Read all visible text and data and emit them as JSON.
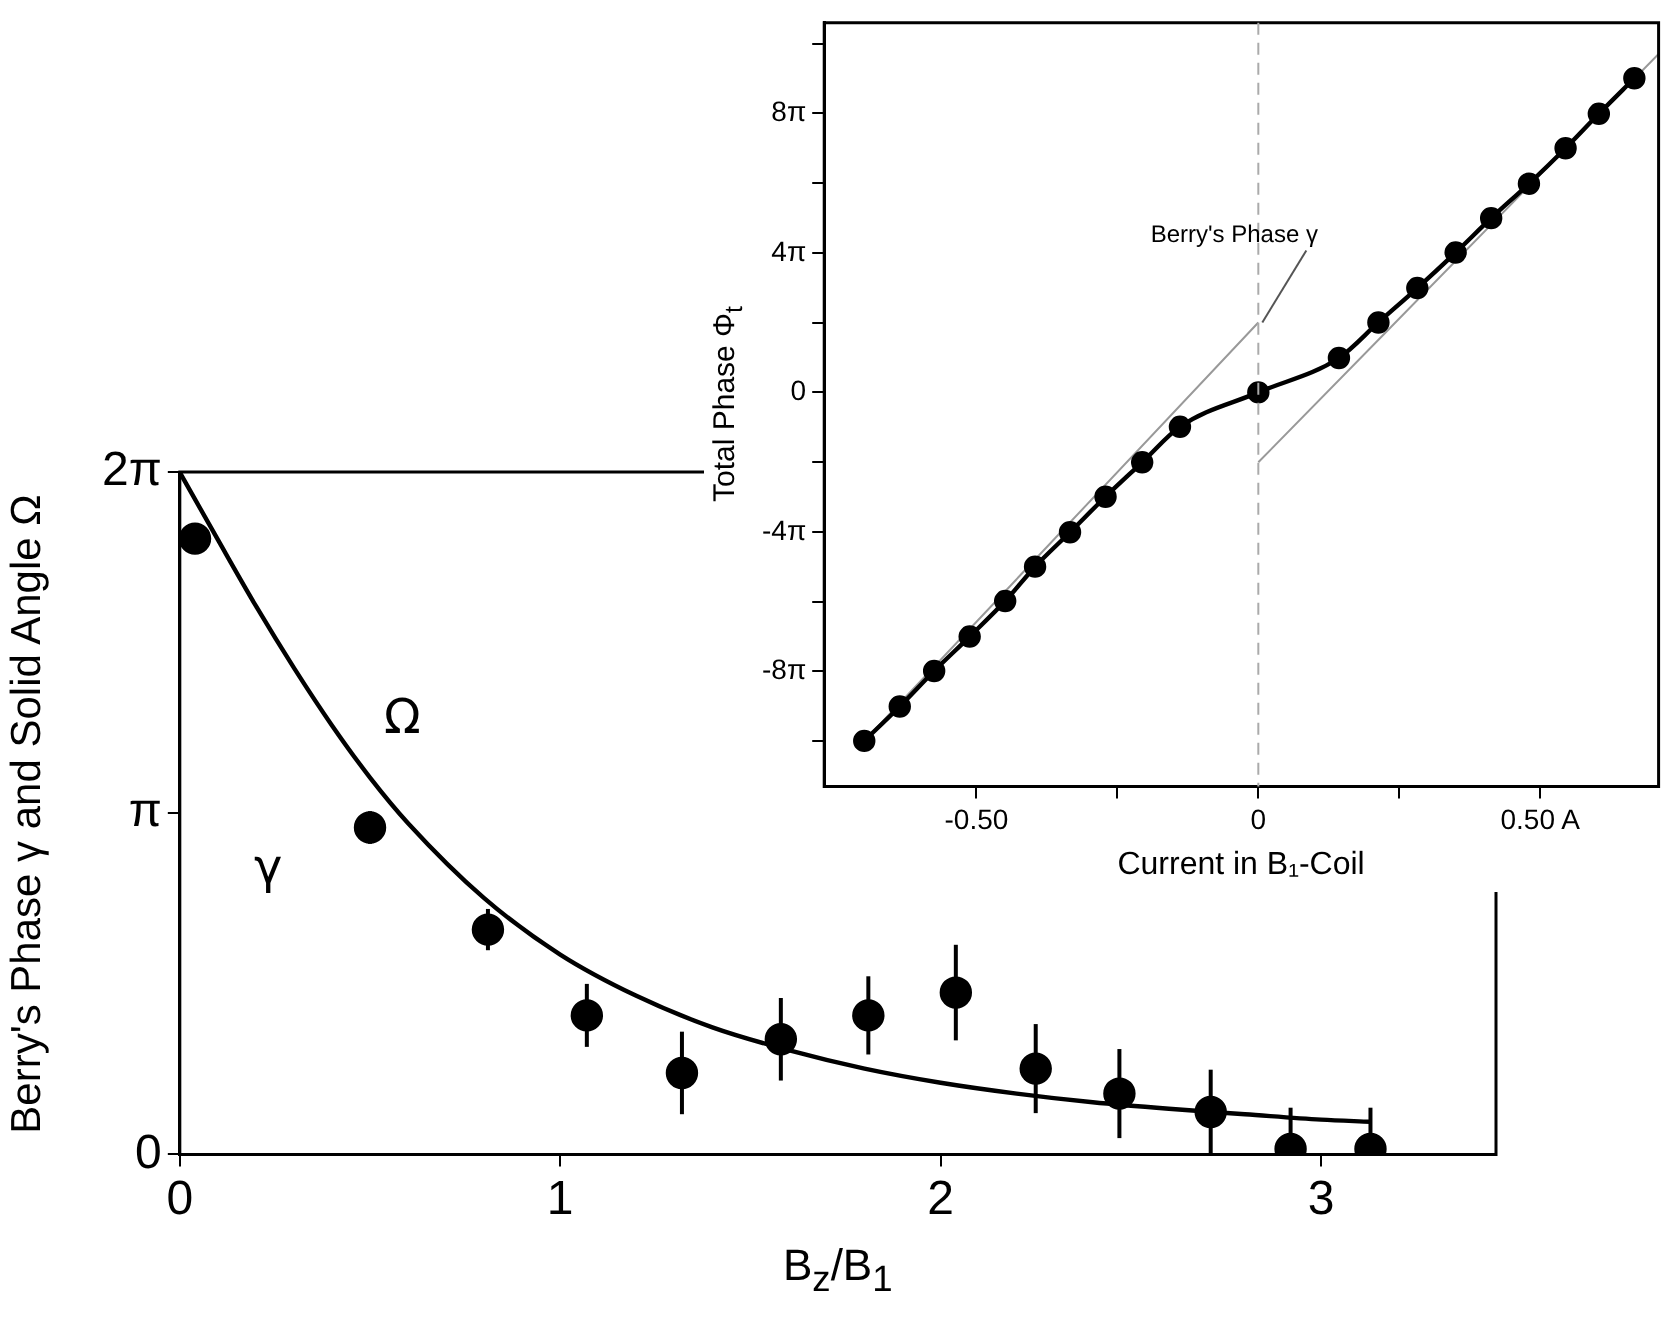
{
  "chart_data": [
    {
      "type": "scatter",
      "xlabel": "B$_{z}$/B$_{1}$",
      "ylabel": "Berry's Phase γ and Solid Angle Ω",
      "xlim": [
        0,
        3.46
      ],
      "xticks": [
        0,
        1,
        2,
        3
      ],
      "ylim": [
        0,
        6.2832
      ],
      "yticks": [
        0,
        {
          "value": 3.1416,
          "label": "π"
        },
        {
          "value": 6.2832,
          "label": "2π"
        }
      ],
      "series": [
        {
          "name": "Ω",
          "type": "line",
          "color": "#000000",
          "marker": "none",
          "x": [
            0,
            0.1,
            0.2,
            0.3,
            0.4,
            0.5,
            0.6,
            0.8,
            1.0,
            1.2,
            1.4,
            1.6,
            1.8,
            2.0,
            2.2,
            2.4,
            2.6,
            2.8,
            3.0,
            3.13
          ],
          "values": [
            6.28,
            5.66,
            5.05,
            4.48,
            3.95,
            3.47,
            3.05,
            2.36,
            1.84,
            1.46,
            1.17,
            0.96,
            0.79,
            0.66,
            0.56,
            0.48,
            0.42,
            0.37,
            0.32,
            0.3
          ]
        },
        {
          "name": "γ",
          "color": "#000000",
          "marker": "circle",
          "x": [
            0.04,
            0.5,
            0.81,
            1.07,
            1.32,
            1.58,
            1.81,
            2.04,
            2.25,
            2.47,
            2.71,
            2.92,
            3.13
          ],
          "values": [
            5.67,
            3.01,
            2.07,
            1.28,
            0.75,
            1.06,
            1.28,
            1.49,
            0.79,
            0.56,
            0.39,
            0.05,
            0.05
          ],
          "errors": [
            null,
            0.15,
            0.19,
            0.29,
            0.38,
            0.38,
            0.36,
            0.44,
            0.41,
            0.41,
            0.39,
            [
              0,
              0.43
            ],
            [
              0,
              0.43
            ]
          ]
        }
      ]
    },
    {
      "type": "line",
      "xlabel": "Current in B₁-Coil",
      "ylabel": "Total Phase Φ$_{t}$",
      "xlim": [
        -0.77,
        0.71
      ],
      "xticks": [
        {
          "value": -0.5,
          "label": "-0.50"
        },
        {
          "value": -0.25,
          "label": null
        },
        0,
        {
          "value": 0.25,
          "label": null
        },
        {
          "value": 0.5,
          "label": "0.50 A"
        }
      ],
      "ylim": [
        -35.5,
        33.3
      ],
      "yticks": [
        {
          "value": -31.42,
          "label": null
        },
        {
          "value": -25.13,
          "label": "-8π"
        },
        {
          "value": -18.85,
          "label": null
        },
        {
          "value": -12.57,
          "label": "-4π"
        },
        {
          "value": -6.28,
          "label": null
        },
        0,
        {
          "value": 6.28,
          "label": null
        },
        {
          "value": 12.57,
          "label": "4π"
        },
        {
          "value": 18.85,
          "label": null
        },
        {
          "value": 25.13,
          "label": "8π"
        },
        {
          "value": 31.42,
          "label": null
        }
      ],
      "series": [
        {
          "color": "#000000",
          "marker": "circle",
          "x": [
            -0.699,
            -0.636,
            -0.575,
            -0.512,
            -0.449,
            -0.396,
            -0.334,
            -0.271,
            -0.206,
            -0.139,
            0,
            0.143,
            0.213,
            0.282,
            0.35,
            0.413,
            0.48,
            0.545,
            0.604,
            0.667
          ],
          "values": [
            -31.4,
            -28.3,
            -25.1,
            -22.0,
            -18.8,
            -15.7,
            -12.6,
            -9.4,
            -6.3,
            -3.1,
            0,
            3.1,
            6.3,
            9.4,
            12.6,
            15.7,
            18.8,
            22.0,
            25.1,
            28.3
          ]
        },
        {
          "color": "#999999",
          "marker": "none",
          "x": [
            -0.71,
            0
          ],
          "values": [
            -32.0,
            6.3
          ]
        },
        {
          "color": "#999999",
          "marker": "none",
          "x": [
            0,
            0.71
          ],
          "values": [
            -6.3,
            30.5
          ]
        }
      ],
      "ref_lines": [
        {
          "axis": "x",
          "value": 0,
          "color": "#aaaaaa",
          "line_style": "dashed"
        }
      ],
      "annotations": [
        {
          "text": "Berry's Phase γ",
          "x": 0,
          "y": 6.3
        }
      ]
    }
  ]
}
